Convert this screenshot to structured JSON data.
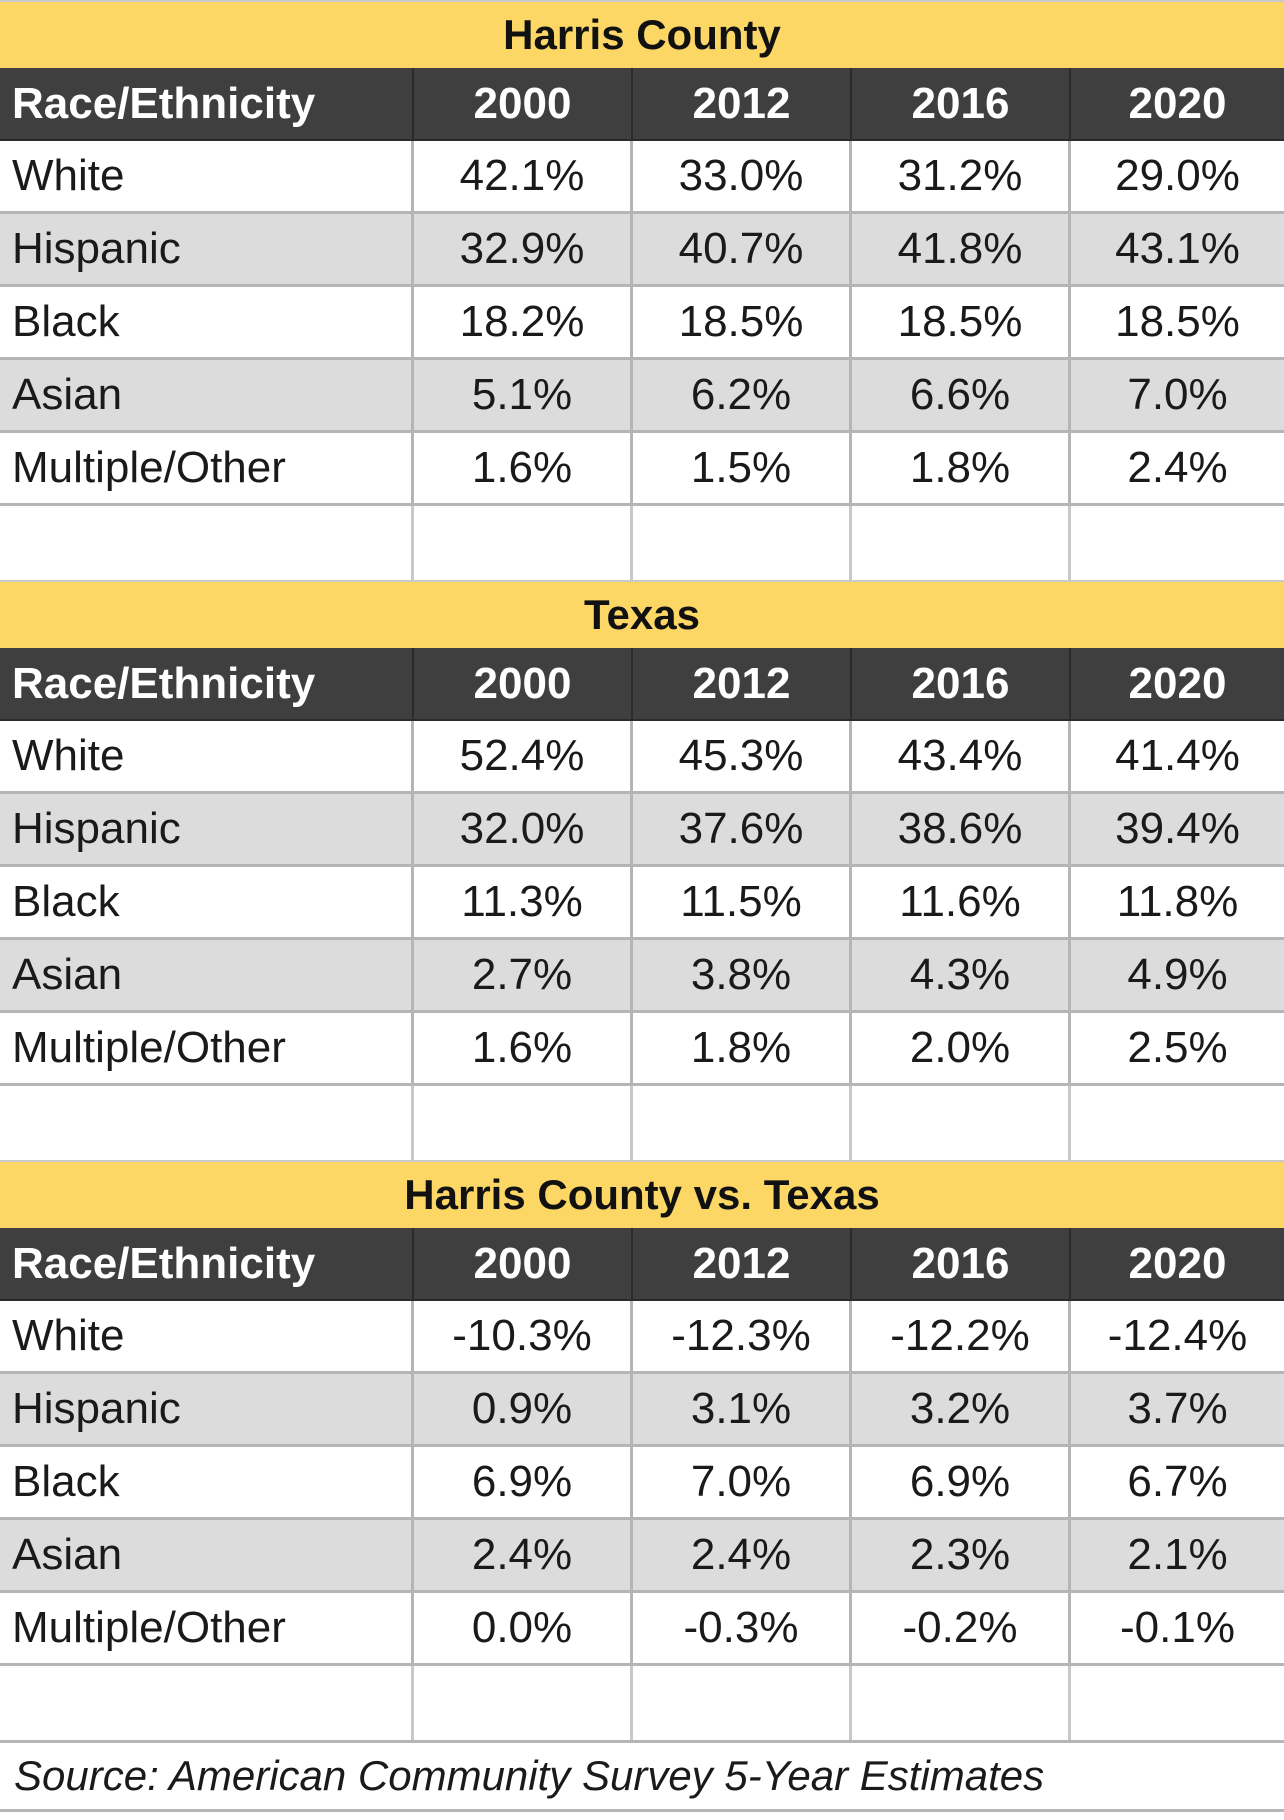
{
  "tables": [
    {
      "title": "Harris County",
      "headers": [
        "Race/Ethnicity",
        "2000",
        "2012",
        "2016",
        "2020"
      ],
      "rows": [
        [
          "White",
          "42.1%",
          "33.0%",
          "31.2%",
          "29.0%"
        ],
        [
          "Hispanic",
          "32.9%",
          "40.7%",
          "41.8%",
          "43.1%"
        ],
        [
          "Black",
          "18.2%",
          "18.5%",
          "18.5%",
          "18.5%"
        ],
        [
          "Asian",
          "5.1%",
          "6.2%",
          "6.6%",
          "7.0%"
        ],
        [
          "Multiple/Other",
          "1.6%",
          "1.5%",
          "1.8%",
          "2.4%"
        ]
      ]
    },
    {
      "title": "Texas",
      "headers": [
        "Race/Ethnicity",
        "2000",
        "2012",
        "2016",
        "2020"
      ],
      "rows": [
        [
          "White",
          "52.4%",
          "45.3%",
          "43.4%",
          "41.4%"
        ],
        [
          "Hispanic",
          "32.0%",
          "37.6%",
          "38.6%",
          "39.4%"
        ],
        [
          "Black",
          "11.3%",
          "11.5%",
          "11.6%",
          "11.8%"
        ],
        [
          "Asian",
          "2.7%",
          "3.8%",
          "4.3%",
          "4.9%"
        ],
        [
          "Multiple/Other",
          "1.6%",
          "1.8%",
          "2.0%",
          "2.5%"
        ]
      ]
    },
    {
      "title": "Harris County vs. Texas",
      "headers": [
        "Race/Ethnicity",
        "2000",
        "2012",
        "2016",
        "2020"
      ],
      "rows": [
        [
          "White",
          "-10.3%",
          "-12.3%",
          "-12.2%",
          "-12.4%"
        ],
        [
          "Hispanic",
          "0.9%",
          "3.1%",
          "3.2%",
          "3.7%"
        ],
        [
          "Black",
          "6.9%",
          "7.0%",
          "6.9%",
          "6.7%"
        ],
        [
          "Asian",
          "2.4%",
          "2.4%",
          "2.3%",
          "2.1%"
        ],
        [
          "Multiple/Other",
          "0.0%",
          "-0.3%",
          "-0.2%",
          "-0.1%"
        ]
      ]
    }
  ],
  "source": "Source: American Community Survey 5-Year Estimates",
  "colors": {
    "title_band": "#fcd766",
    "header_band": "#3f3f3f",
    "alt_row": "#dcdcdc"
  }
}
